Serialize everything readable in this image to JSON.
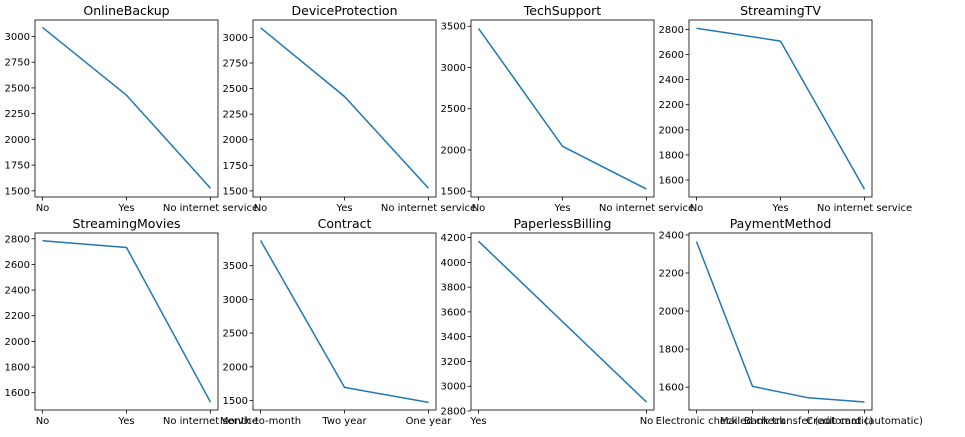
{
  "chart_data": [
    {
      "type": "line",
      "title": "OnlineBackup",
      "categories": [
        "No",
        "Yes",
        "No internet service"
      ],
      "values": [
        3088,
        2429,
        1526
      ],
      "ylim": [
        1440,
        3160
      ],
      "yticks": [
        1500,
        1750,
        2000,
        2250,
        2500,
        2750,
        3000
      ],
      "grid": false,
      "line_color": "#1f77b4"
    },
    {
      "type": "line",
      "title": "DeviceProtection",
      "categories": [
        "No",
        "Yes",
        "No internet service"
      ],
      "values": [
        3095,
        2422,
        1526
      ],
      "ylim": [
        1440,
        3170
      ],
      "yticks": [
        1500,
        1750,
        2000,
        2250,
        2500,
        2750,
        3000
      ],
      "grid": false,
      "line_color": "#1f77b4"
    },
    {
      "type": "line",
      "title": "TechSupport",
      "categories": [
        "No",
        "Yes",
        "No internet service"
      ],
      "values": [
        3473,
        2044,
        1526
      ],
      "ylim": [
        1430,
        3575
      ],
      "yticks": [
        1500,
        2000,
        2500,
        3000,
        3500
      ],
      "grid": false,
      "line_color": "#1f77b4"
    },
    {
      "type": "line",
      "title": "StreamingTV",
      "categories": [
        "No",
        "Yes",
        "No internet service"
      ],
      "values": [
        2810,
        2707,
        1526
      ],
      "ylim": [
        1465,
        2875
      ],
      "yticks": [
        1600,
        1800,
        2000,
        2200,
        2400,
        2600,
        2800
      ],
      "grid": false,
      "line_color": "#1f77b4"
    },
    {
      "type": "line",
      "title": "StreamingMovies",
      "categories": [
        "No",
        "Yes",
        "No internet service"
      ],
      "values": [
        2785,
        2732,
        1526
      ],
      "ylim": [
        1465,
        2845
      ],
      "yticks": [
        1600,
        1800,
        2000,
        2200,
        2400,
        2600,
        2800
      ],
      "grid": false,
      "line_color": "#1f77b4"
    },
    {
      "type": "line",
      "title": "Contract",
      "categories": [
        "Month-to-month",
        "Two year",
        "One year"
      ],
      "values": [
        3875,
        1695,
        1473
      ],
      "ylim": [
        1360,
        3985
      ],
      "yticks": [
        1500,
        2000,
        2500,
        3000,
        3500
      ],
      "grid": false,
      "line_color": "#1f77b4"
    },
    {
      "type": "line",
      "title": "PaperlessBilling",
      "categories": [
        "Yes",
        "No"
      ],
      "values": [
        4171,
        2872
      ],
      "ylim": [
        2808,
        4237
      ],
      "yticks": [
        2800,
        3000,
        3200,
        3400,
        3600,
        3800,
        4000,
        4200
      ],
      "grid": false,
      "line_color": "#1f77b4"
    },
    {
      "type": "line",
      "title": "PaymentMethod",
      "categories": [
        "Electronic check",
        "Mailed check",
        "Bank transfer (automatic)",
        "Credit card (automatic)"
      ],
      "values": [
        2365,
        1604,
        1544,
        1522
      ],
      "ylim": [
        1480,
        2410
      ],
      "yticks": [
        1600,
        1800,
        2000,
        2200,
        2400
      ],
      "grid": false,
      "line_color": "#1f77b4"
    }
  ]
}
